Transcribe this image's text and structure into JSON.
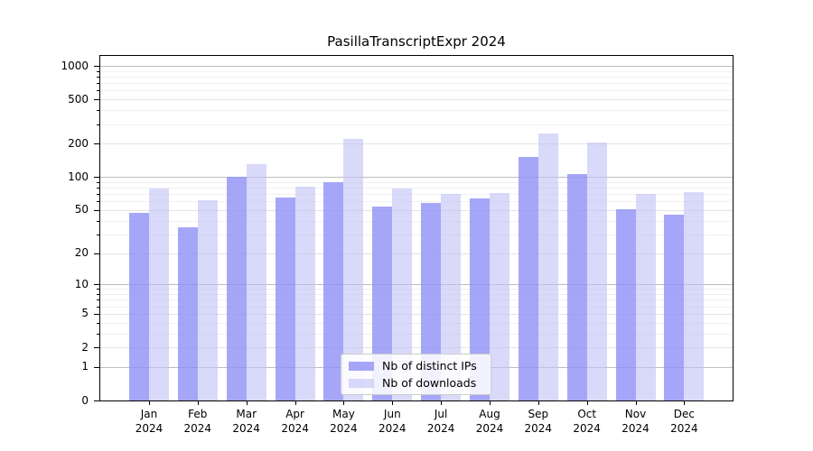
{
  "title": "PasillaTranscriptExpr 2024",
  "chart_data": {
    "type": "bar",
    "title": "PasillaTranscriptExpr 2024",
    "categories": [
      "Jan",
      "Feb",
      "Mar",
      "Apr",
      "May",
      "Jun",
      "Jul",
      "Aug",
      "Sep",
      "Oct",
      "Nov",
      "Dec"
    ],
    "x_tick_year": "2024",
    "series": [
      {
        "name": "Nb of distinct IPs",
        "color": "#9090f6",
        "alpha": 0.8,
        "values": [
          47,
          35,
          100,
          65,
          90,
          54,
          58,
          64,
          153,
          107,
          51,
          45
        ]
      },
      {
        "name": "Nb of downloads",
        "color": "#c0c0f7",
        "alpha": 0.6,
        "values": [
          78,
          61,
          130,
          81,
          220,
          78,
          70,
          71,
          245,
          203,
          70,
          73
        ]
      }
    ],
    "xlabel": "",
    "ylabel": "",
    "y_scale": "log1p",
    "ylim": [
      0,
      1250
    ],
    "y_ticks": [
      0,
      1,
      2,
      5,
      10,
      20,
      50,
      100,
      200,
      500,
      1000
    ],
    "y_minor_ticks": [
      3,
      4,
      6,
      7,
      8,
      9,
      30,
      40,
      60,
      70,
      80,
      90,
      300,
      400,
      600,
      700,
      800,
      900
    ],
    "grid": true,
    "legend_position": "lower center"
  }
}
